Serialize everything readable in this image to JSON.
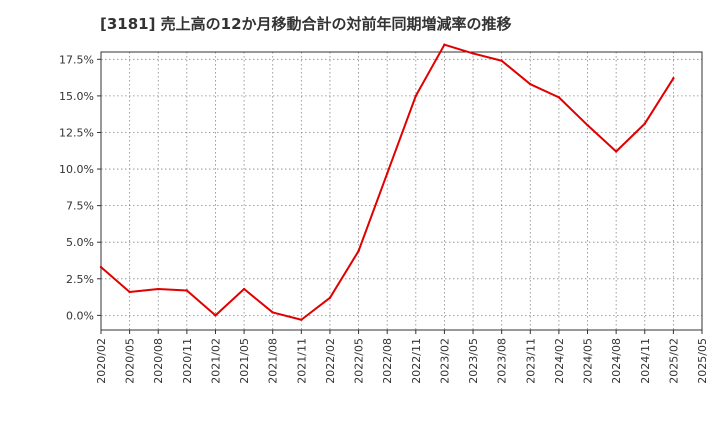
{
  "chart_data": {
    "type": "line",
    "title": "[3181]  売上高の12か月移動合計の対前年同期増減率の推移",
    "xlabel": "",
    "ylabel": "",
    "ylim": [
      -1.0,
      18.0
    ],
    "yticks": [
      0.0,
      2.5,
      5.0,
      7.5,
      10.0,
      12.5,
      15.0,
      17.5
    ],
    "ytick_labels": [
      "0.0%",
      "2.5%",
      "5.0%",
      "7.5%",
      "10.0%",
      "12.5%",
      "15.0%",
      "17.5%"
    ],
    "categories": [
      "2020/02",
      "2020/05",
      "2020/08",
      "2020/11",
      "2021/02",
      "2021/05",
      "2021/08",
      "2021/11",
      "2022/02",
      "2022/05",
      "2022/08",
      "2022/11",
      "2023/02",
      "2023/05",
      "2023/08",
      "2023/11",
      "2024/02",
      "2024/05",
      "2024/08",
      "2024/11",
      "2025/02",
      "2025/05"
    ],
    "grid": true,
    "series": [
      {
        "name": "対前年同期増減率",
        "color": "#e00000",
        "values": [
          3.3,
          1.6,
          1.8,
          1.7,
          0.0,
          1.8,
          0.2,
          -0.3,
          1.2,
          4.4,
          9.7,
          15.0,
          18.5,
          17.9,
          17.4,
          15.8,
          14.9,
          13.0,
          11.2,
          13.1,
          16.2,
          null
        ]
      }
    ]
  }
}
